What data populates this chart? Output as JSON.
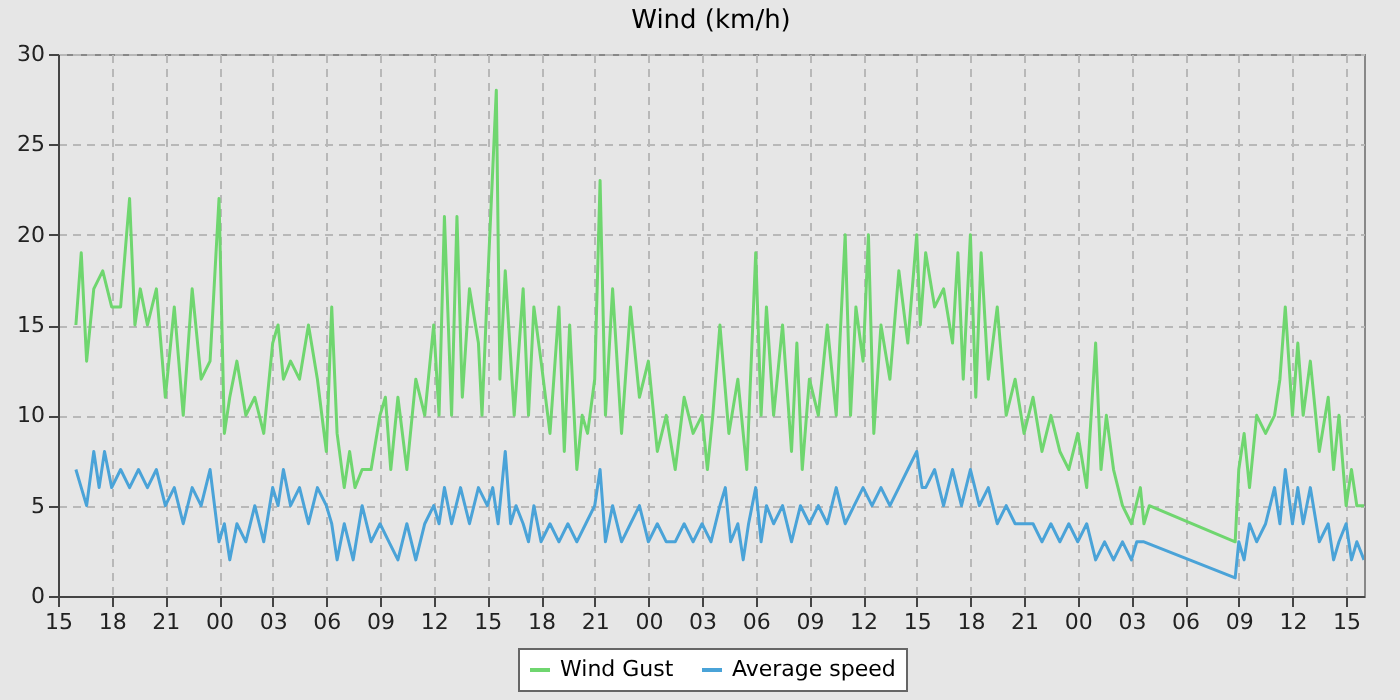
{
  "chart_data": {
    "type": "line",
    "title": "Wind (km/h)",
    "xlim": [
      15,
      88
    ],
    "ylim": [
      0,
      30
    ],
    "xticks": [
      {
        "value": 15,
        "label": "15"
      },
      {
        "value": 18,
        "label": "18"
      },
      {
        "value": 21,
        "label": "21"
      },
      {
        "value": 24,
        "label": "00"
      },
      {
        "value": 27,
        "label": "03"
      },
      {
        "value": 30,
        "label": "06"
      },
      {
        "value": 33,
        "label": "09"
      },
      {
        "value": 36,
        "label": "12"
      },
      {
        "value": 39,
        "label": "15"
      },
      {
        "value": 42,
        "label": "18"
      },
      {
        "value": 45,
        "label": "21"
      },
      {
        "value": 48,
        "label": "00"
      },
      {
        "value": 51,
        "label": "03"
      },
      {
        "value": 54,
        "label": "06"
      },
      {
        "value": 57,
        "label": "09"
      },
      {
        "value": 60,
        "label": "12"
      },
      {
        "value": 63,
        "label": "15"
      },
      {
        "value": 66,
        "label": "18"
      },
      {
        "value": 69,
        "label": "21"
      },
      {
        "value": 72,
        "label": "00"
      },
      {
        "value": 75,
        "label": "03"
      },
      {
        "value": 78,
        "label": "06"
      },
      {
        "value": 81,
        "label": "09"
      },
      {
        "value": 84,
        "label": "12"
      },
      {
        "value": 87,
        "label": "15"
      }
    ],
    "yticks": [
      0,
      5,
      10,
      15,
      20,
      25,
      30
    ],
    "grid": true,
    "legend": "bottom",
    "marker": "none",
    "line_style": "solid",
    "series": [
      {
        "name": "Wind Gust",
        "color": "#6fd66f",
        "x": [
          16,
          16.3,
          16.6,
          17,
          17.5,
          18,
          18.5,
          19,
          19.3,
          19.6,
          20,
          20.5,
          21,
          21.5,
          22,
          22.5,
          23,
          23.5,
          24,
          24.3,
          24.6,
          25,
          25.5,
          26,
          26.5,
          27,
          27.3,
          27.6,
          28,
          28.5,
          29,
          29.5,
          30,
          30.3,
          30.6,
          31,
          31.3,
          31.6,
          32,
          32.5,
          33,
          33.3,
          33.6,
          34,
          34.5,
          35,
          35.5,
          36,
          36.3,
          36.6,
          37,
          37.3,
          37.6,
          38,
          38.5,
          38.7,
          39,
          39.5,
          39.7,
          40,
          40.5,
          41,
          41.3,
          41.6,
          42,
          42.5,
          43,
          43.3,
          43.6,
          44,
          44.3,
          44.6,
          45,
          45.3,
          45.6,
          46,
          46.5,
          47,
          47.5,
          48,
          48.5,
          49,
          49.5,
          50,
          50.5,
          51,
          51.3,
          51.6,
          52,
          52.5,
          53,
          53.5,
          54,
          54.3,
          54.6,
          55,
          55.5,
          56,
          56.3,
          56.6,
          57,
          57.5,
          58,
          58.5,
          59,
          59.3,
          59.6,
          60,
          60.3,
          60.6,
          61,
          61.5,
          62,
          62.5,
          63,
          63.2,
          63.5,
          64,
          64.5,
          65,
          65.3,
          65.6,
          66,
          66.3,
          66.6,
          67,
          67.5,
          68,
          68.5,
          69,
          69.5,
          70,
          70.5,
          71,
          71.5,
          72,
          72.5,
          73,
          73.3,
          73.6,
          74,
          74.5,
          75,
          75.5,
          75.7,
          76,
          80.8,
          81,
          81.3,
          81.6,
          82,
          82.5,
          83,
          83.3,
          83.6,
          84,
          84.3,
          84.6,
          85,
          85.5,
          86,
          86.3,
          86.6,
          87,
          87.3,
          87.6,
          88
        ],
        "values": [
          15,
          19,
          13,
          17,
          18,
          16,
          16,
          22,
          15,
          17,
          15,
          17,
          11,
          16,
          10,
          17,
          12,
          13,
          22,
          9,
          11,
          13,
          10,
          11,
          9,
          14,
          15,
          12,
          13,
          12,
          15,
          12,
          8,
          16,
          9,
          6,
          8,
          6,
          7,
          7,
          10,
          11,
          7,
          11,
          7,
          12,
          10,
          15,
          10,
          21,
          10,
          21,
          11,
          17,
          14,
          10,
          17,
          28,
          12,
          18,
          10,
          17,
          10,
          16,
          13,
          9,
          16,
          8,
          15,
          7,
          10,
          9,
          12,
          23,
          10,
          17,
          9,
          16,
          11,
          13,
          8,
          10,
          7,
          11,
          9,
          10,
          7,
          10,
          15,
          9,
          12,
          7,
          19,
          10,
          16,
          10,
          15,
          8,
          14,
          7,
          12,
          10,
          15,
          10,
          20,
          10,
          16,
          13,
          20,
          9,
          15,
          12,
          18,
          14,
          20,
          15,
          19,
          16,
          17,
          14,
          19,
          12,
          20,
          11,
          19,
          12,
          16,
          10,
          12,
          9,
          11,
          8,
          10,
          8,
          7,
          9,
          6,
          14,
          7,
          10,
          7,
          5,
          4,
          6,
          4,
          5,
          3,
          7,
          9,
          6,
          10,
          9,
          10,
          12,
          16,
          10,
          14,
          10,
          13,
          8,
          11,
          7,
          10,
          5,
          7,
          5,
          5
        ]
      },
      {
        "name": "Average speed",
        "color": "#4aa3d8",
        "x": [
          16,
          16.3,
          16.6,
          17,
          17.3,
          17.6,
          18,
          18.5,
          19,
          19.5,
          20,
          20.5,
          21,
          21.5,
          22,
          22.5,
          23,
          23.5,
          24,
          24.3,
          24.6,
          25,
          25.5,
          26,
          26.5,
          27,
          27.3,
          27.6,
          28,
          28.5,
          29,
          29.5,
          30,
          30.3,
          30.6,
          31,
          31.5,
          32,
          32.5,
          33,
          33.5,
          34,
          34.5,
          35,
          35.5,
          36,
          36.3,
          36.6,
          37,
          37.5,
          38,
          38.5,
          39,
          39.3,
          39.6,
          40,
          40.3,
          40.6,
          41,
          41.3,
          41.6,
          42,
          42.5,
          43,
          43.5,
          44,
          44.5,
          45,
          45.3,
          45.6,
          46,
          46.5,
          47,
          47.5,
          48,
          48.5,
          49,
          49.5,
          50,
          50.5,
          51,
          51.5,
          52,
          52.3,
          52.6,
          53,
          53.3,
          53.6,
          54,
          54.3,
          54.6,
          55,
          55.5,
          56,
          56.5,
          57,
          57.5,
          58,
          58.5,
          59,
          59.5,
          60,
          60.5,
          61,
          61.5,
          62,
          62.5,
          63,
          63.3,
          63.5,
          64,
          64.5,
          65,
          65.5,
          66,
          66.5,
          67,
          67.5,
          68,
          68.5,
          69,
          69.5,
          70,
          70.5,
          71,
          71.5,
          72,
          72.5,
          73,
          73.5,
          74,
          74.5,
          75,
          75.3,
          75.7,
          80.8,
          81,
          81.3,
          81.6,
          82,
          82.5,
          83,
          83.3,
          83.6,
          84,
          84.3,
          84.6,
          85,
          85.5,
          86,
          86.3,
          86.6,
          87,
          87.3,
          87.6,
          88
        ],
        "values": [
          7,
          6,
          5,
          8,
          6,
          8,
          6,
          7,
          6,
          7,
          6,
          7,
          5,
          6,
          4,
          6,
          5,
          7,
          3,
          4,
          2,
          4,
          3,
          5,
          3,
          6,
          5,
          7,
          5,
          6,
          4,
          6,
          5,
          4,
          2,
          4,
          2,
          5,
          3,
          4,
          3,
          2,
          4,
          2,
          4,
          5,
          4,
          6,
          4,
          6,
          4,
          6,
          5,
          6,
          4,
          8,
          4,
          5,
          4,
          3,
          5,
          3,
          4,
          3,
          4,
          3,
          4,
          5,
          7,
          3,
          5,
          3,
          4,
          5,
          3,
          4,
          3,
          3,
          4,
          3,
          4,
          3,
          5,
          6,
          3,
          4,
          2,
          4,
          6,
          3,
          5,
          4,
          5,
          3,
          5,
          4,
          5,
          4,
          6,
          4,
          5,
          6,
          5,
          6,
          5,
          6,
          7,
          8,
          6,
          6,
          7,
          5,
          7,
          5,
          7,
          5,
          6,
          4,
          5,
          4,
          4,
          4,
          3,
          4,
          3,
          4,
          3,
          4,
          2,
          3,
          2,
          3,
          2,
          3,
          3,
          1,
          3,
          2,
          4,
          3,
          4,
          6,
          4,
          7,
          4,
          6,
          4,
          6,
          3,
          4,
          2,
          3,
          4,
          2,
          3,
          2
        ]
      }
    ]
  }
}
